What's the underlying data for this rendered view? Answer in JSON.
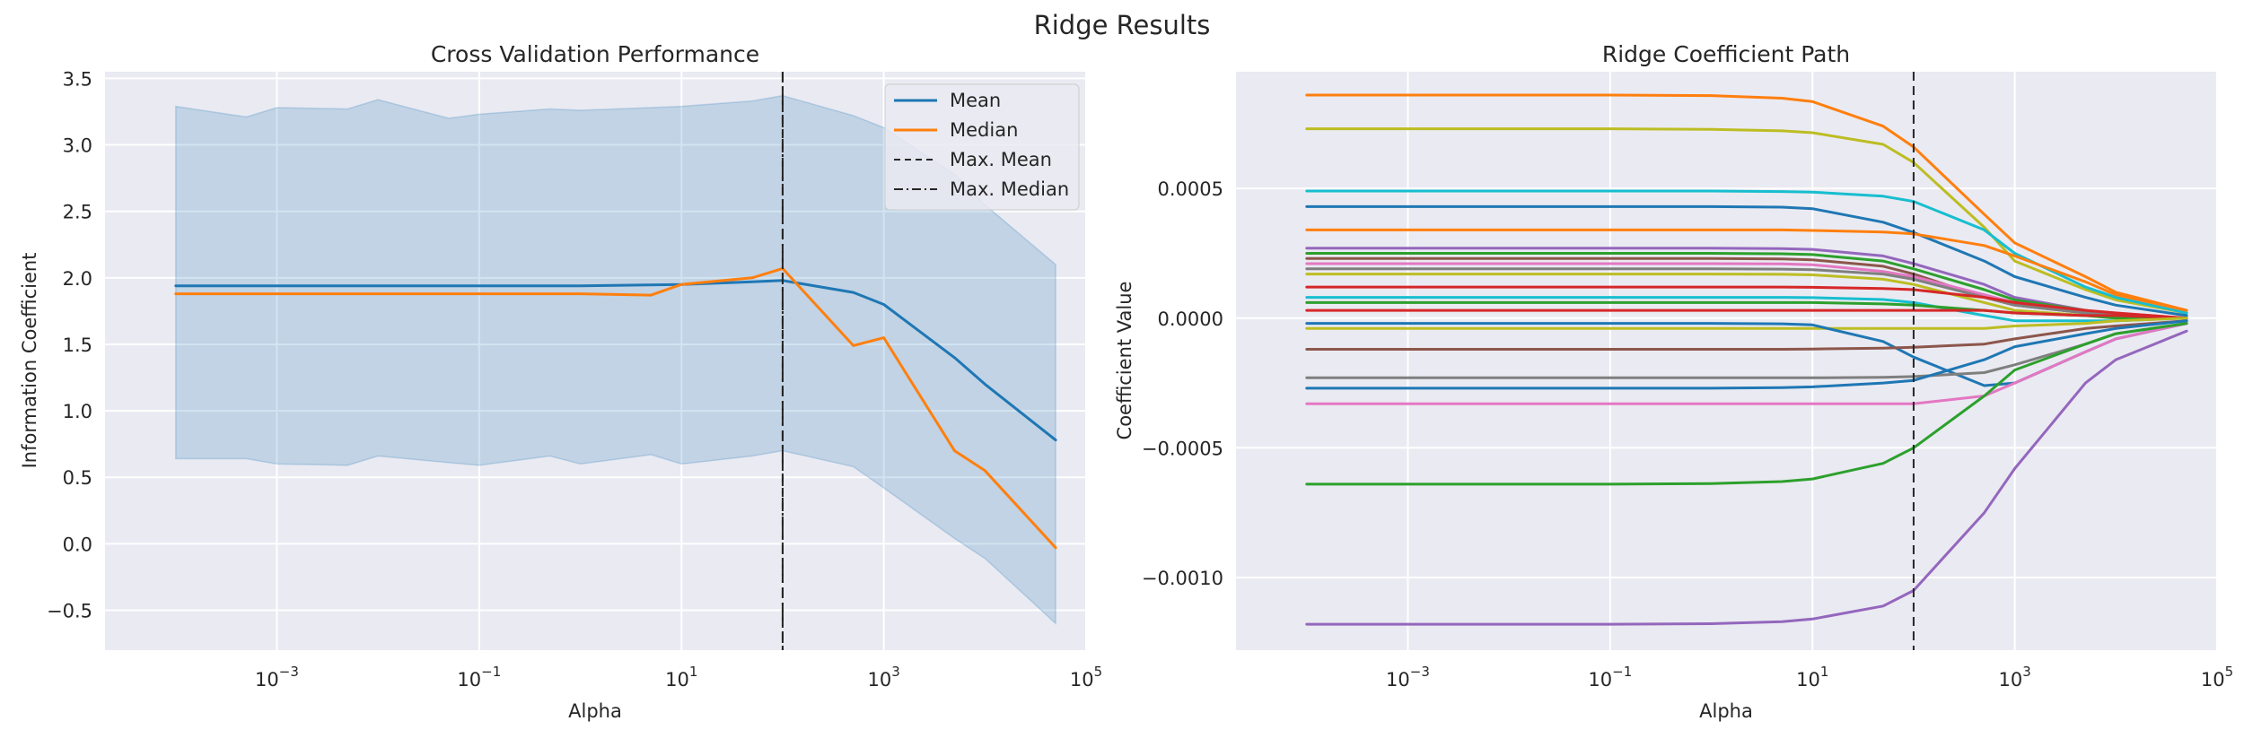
{
  "figure": {
    "suptitle": "Ridge Results"
  },
  "chart_data": [
    {
      "type": "line",
      "title": "Cross Validation Performance",
      "xlabel": "Alpha",
      "ylabel": "Information Coefficient",
      "xscale": "log",
      "xlim": [
        2e-05,
        100000
      ],
      "ylim": [
        -0.8,
        3.55
      ],
      "xticks": [
        {
          "value": 0.001,
          "base": "10",
          "exp": "−3"
        },
        {
          "value": 0.1,
          "base": "10",
          "exp": "−1"
        },
        {
          "value": 10,
          "base": "10",
          "exp": "1"
        },
        {
          "value": 1000,
          "base": "10",
          "exp": "3"
        },
        {
          "value": 100000,
          "base": "10",
          "exp": "5"
        }
      ],
      "yticks": [
        {
          "value": -0.5,
          "label": "−0.5"
        },
        {
          "value": 0.0,
          "label": "0.0"
        },
        {
          "value": 0.5,
          "label": "0.5"
        },
        {
          "value": 1.0,
          "label": "1.0"
        },
        {
          "value": 1.5,
          "label": "1.5"
        },
        {
          "value": 2.0,
          "label": "2.0"
        },
        {
          "value": 2.5,
          "label": "2.5"
        },
        {
          "value": 3.0,
          "label": "3.0"
        },
        {
          "value": 3.5,
          "label": "3.5"
        }
      ],
      "grid": true,
      "legend_position": "top-right",
      "band": {
        "color": "#1f77b4",
        "x": [
          0.0001,
          0.0005,
          0.001,
          0.005,
          0.01,
          0.05,
          0.1,
          0.5,
          1,
          5,
          10,
          50,
          100,
          500,
          1000,
          5000,
          10000,
          50000
        ],
        "lower": [
          0.64,
          0.64,
          0.6,
          0.59,
          0.66,
          0.61,
          0.59,
          0.66,
          0.6,
          0.67,
          0.6,
          0.66,
          0.7,
          0.58,
          0.42,
          0.04,
          -0.11,
          -0.6
        ],
        "upper": [
          3.29,
          3.21,
          3.28,
          3.27,
          3.34,
          3.2,
          3.23,
          3.27,
          3.26,
          3.28,
          3.29,
          3.33,
          3.37,
          3.22,
          3.13,
          2.78,
          2.55,
          2.1
        ]
      },
      "series": [
        {
          "name": "Mean",
          "color": "#1f77b4",
          "style": "solid",
          "x": [
            0.0001,
            0.001,
            0.01,
            0.1,
            1,
            10,
            50,
            100,
            500,
            1000,
            5000,
            10000,
            50000
          ],
          "y": [
            1.94,
            1.94,
            1.94,
            1.94,
            1.94,
            1.95,
            1.97,
            1.98,
            1.89,
            1.8,
            1.4,
            1.2,
            0.78
          ]
        },
        {
          "name": "Median",
          "color": "#ff7f0e",
          "style": "solid",
          "x": [
            0.0001,
            0.001,
            0.01,
            0.1,
            1,
            5,
            10,
            50,
            100,
            500,
            1000,
            5000,
            10000,
            50000
          ],
          "y": [
            1.88,
            1.88,
            1.88,
            1.88,
            1.88,
            1.87,
            1.95,
            2.0,
            2.07,
            1.49,
            1.55,
            0.7,
            0.55,
            -0.03
          ]
        }
      ],
      "vlines": [
        {
          "name": "Max. Mean",
          "x": 100,
          "style": "dashed",
          "color": "#262626"
        },
        {
          "name": "Max. Median",
          "x": 100,
          "style": "dashdot",
          "color": "#262626"
        }
      ]
    },
    {
      "type": "line",
      "title": "Ridge Coefficient Path",
      "xlabel": "Alpha",
      "ylabel": "Coefficient Value",
      "xscale": "log",
      "xlim": [
        2e-05,
        100000
      ],
      "ylim": [
        -0.00128,
        0.00095
      ],
      "xticks": [
        {
          "value": 0.001,
          "base": "10",
          "exp": "−3"
        },
        {
          "value": 0.1,
          "base": "10",
          "exp": "−1"
        },
        {
          "value": 10,
          "base": "10",
          "exp": "1"
        },
        {
          "value": 1000,
          "base": "10",
          "exp": "3"
        },
        {
          "value": 100000,
          "base": "10",
          "exp": "5"
        }
      ],
      "yticks": [
        {
          "value": -0.001,
          "label": "−0.0010"
        },
        {
          "value": -0.0005,
          "label": "−0.0005"
        },
        {
          "value": 0.0,
          "label": "0.0000"
        },
        {
          "value": 0.0005,
          "label": "0.0005"
        }
      ],
      "grid": true,
      "x": [
        0.0001,
        0.001,
        0.01,
        0.1,
        1,
        5,
        10,
        50,
        100,
        500,
        1000,
        5000,
        10000,
        50000
      ],
      "series": [
        {
          "color": "#ff7f0e",
          "y": [
            0.00086,
            0.00086,
            0.00086,
            0.00086,
            0.000858,
            0.000848,
            0.000835,
            0.00074,
            0.00066,
            0.0004,
            0.00029,
            0.00016,
            0.0001,
            3e-05
          ]
        },
        {
          "color": "#bcbd22",
          "y": [
            0.00073,
            0.00073,
            0.00073,
            0.00073,
            0.000728,
            0.000722,
            0.000715,
            0.00067,
            0.0006,
            0.00035,
            0.00022,
            0.00011,
            7e-05,
            2e-05
          ]
        },
        {
          "color": "#17becf",
          "y": [
            0.00049,
            0.00049,
            0.00049,
            0.00049,
            0.00049,
            0.000488,
            0.000486,
            0.00047,
            0.00045,
            0.00034,
            0.00025,
            0.00012,
            8e-05,
            2e-05
          ]
        },
        {
          "color": "#1f77b4",
          "y": [
            0.00043,
            0.00043,
            0.00043,
            0.00043,
            0.00043,
            0.000428,
            0.000422,
            0.00037,
            0.00033,
            0.00022,
            0.00016,
            8e-05,
            5e-05,
            1e-05
          ]
        },
        {
          "color": "#ff7f0e",
          "y": [
            0.00034,
            0.00034,
            0.00034,
            0.00034,
            0.00034,
            0.00034,
            0.000338,
            0.000332,
            0.000325,
            0.00028,
            0.00024,
            0.00014,
            9e-05,
            3e-05
          ]
        },
        {
          "color": "#9467bd",
          "y": [
            0.00027,
            0.00027,
            0.00027,
            0.00027,
            0.00027,
            0.000268,
            0.000265,
            0.00024,
            0.00021,
            0.00013,
            8e-05,
            3e-05,
            1e-05,
            0.0
          ]
        },
        {
          "color": "#2ca02c",
          "y": [
            0.00025,
            0.00025,
            0.00025,
            0.00025,
            0.00025,
            0.000248,
            0.000245,
            0.00022,
            0.00019,
            0.00011,
            7e-05,
            3e-05,
            1e-05,
            0.0
          ]
        },
        {
          "color": "#8c564b",
          "y": [
            0.00023,
            0.00023,
            0.00023,
            0.00023,
            0.00023,
            0.000228,
            0.000225,
            0.0002,
            0.00017,
            8e-05,
            5e-05,
            2e-05,
            1e-05,
            0.0
          ]
        },
        {
          "color": "#e377c2",
          "y": [
            0.00021,
            0.00021,
            0.00021,
            0.00021,
            0.00021,
            0.000209,
            0.000206,
            0.00018,
            0.00016,
            9e-05,
            6e-05,
            3e-05,
            2e-05,
            0.0
          ]
        },
        {
          "color": "#7f7f7f",
          "y": [
            0.00019,
            0.00019,
            0.00019,
            0.00019,
            0.00019,
            0.000189,
            0.000187,
            0.00017,
            0.00015,
            8e-05,
            5e-05,
            2e-05,
            1e-05,
            0.0
          ]
        },
        {
          "color": "#bcbd22",
          "y": [
            0.00017,
            0.00017,
            0.00017,
            0.00017,
            0.00017,
            0.000169,
            0.000167,
            0.00015,
            0.00013,
            6e-05,
            3e-05,
            1e-05,
            0.0,
            0.0
          ]
        },
        {
          "color": "#d62728",
          "y": [
            0.00012,
            0.00012,
            0.00012,
            0.00012,
            0.00012,
            0.00012,
            0.000119,
            0.000114,
            0.00011,
            8e-05,
            6e-05,
            3e-05,
            2e-05,
            0.0
          ]
        },
        {
          "color": "#17becf",
          "y": [
            8e-05,
            8e-05,
            8e-05,
            8e-05,
            8e-05,
            8e-05,
            7.9e-05,
            7.2e-05,
            6e-05,
            1e-05,
            -1e-05,
            -1e-05,
            -1e-05,
            0.0
          ]
        },
        {
          "color": "#2ca02c",
          "y": [
            6e-05,
            6e-05,
            6e-05,
            6e-05,
            6e-05,
            6e-05,
            6e-05,
            5.5e-05,
            5e-05,
            3e-05,
            2e-05,
            1e-05,
            0.0,
            0.0
          ]
        },
        {
          "color": "#d62728",
          "y": [
            3e-05,
            3e-05,
            3e-05,
            3e-05,
            3e-05,
            3e-05,
            3e-05,
            3e-05,
            3e-05,
            3e-05,
            2e-05,
            1e-05,
            1e-05,
            0.0
          ]
        },
        {
          "color": "#bcbd22",
          "y": [
            -4e-05,
            -4e-05,
            -4e-05,
            -4e-05,
            -4e-05,
            -4e-05,
            -4e-05,
            -4e-05,
            -4e-05,
            -4e-05,
            -3e-05,
            -2e-05,
            -1e-05,
            0.0
          ]
        },
        {
          "color": "#1f77b4",
          "y": [
            -2e-05,
            -2e-05,
            -2e-05,
            -2e-05,
            -2e-05,
            -2.2e-05,
            -2.6e-05,
            -9e-05,
            -0.00015,
            -0.00026,
            -0.00025,
            -0.00013,
            -8e-05,
            -2e-05
          ]
        },
        {
          "color": "#8c564b",
          "y": [
            -0.00012,
            -0.00012,
            -0.00012,
            -0.00012,
            -0.00012,
            -0.00012,
            -0.000119,
            -0.000116,
            -0.000112,
            -0.0001,
            -8e-05,
            -4e-05,
            -3e-05,
            -1e-05
          ]
        },
        {
          "color": "#7f7f7f",
          "y": [
            -0.00023,
            -0.00023,
            -0.00023,
            -0.00023,
            -0.00023,
            -0.00023,
            -0.00023,
            -0.000228,
            -0.000225,
            -0.00021,
            -0.00018,
            -0.0001,
            -6e-05,
            -2e-05
          ]
        },
        {
          "color": "#1f77b4",
          "y": [
            -0.00027,
            -0.00027,
            -0.00027,
            -0.00027,
            -0.00027,
            -0.000268,
            -0.000265,
            -0.00025,
            -0.00024,
            -0.00016,
            -0.00011,
            -6e-05,
            -4e-05,
            -1e-05
          ]
        },
        {
          "color": "#e377c2",
          "y": [
            -0.00033,
            -0.00033,
            -0.00033,
            -0.00033,
            -0.00033,
            -0.00033,
            -0.00033,
            -0.00033,
            -0.00033,
            -0.0003,
            -0.00025,
            -0.00013,
            -8e-05,
            -2e-05
          ]
        },
        {
          "color": "#2ca02c",
          "y": [
            -0.00064,
            -0.00064,
            -0.00064,
            -0.00064,
            -0.000638,
            -0.00063,
            -0.00062,
            -0.00056,
            -0.0005,
            -0.0003,
            -0.0002,
            -0.0001,
            -6e-05,
            -2e-05
          ]
        },
        {
          "color": "#9467bd",
          "y": [
            -0.00118,
            -0.00118,
            -0.00118,
            -0.00118,
            -0.001178,
            -0.00117,
            -0.00116,
            -0.00111,
            -0.00105,
            -0.00075,
            -0.00058,
            -0.00025,
            -0.00016,
            -5e-05
          ]
        }
      ],
      "vlines": [
        {
          "x": 100,
          "style": "dashed",
          "color": "#262626"
        }
      ]
    }
  ]
}
